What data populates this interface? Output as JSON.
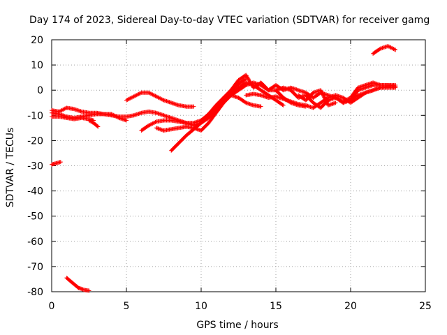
{
  "chart_data": {
    "type": "scatter",
    "title": "Day 174 of 2023, Sidereal Day-to-day VTEC variation (SDTVAR) for receiver gamg",
    "xlabel": "GPS time / hours",
    "ylabel": "SDTVAR / TECUs",
    "xlim": [
      0,
      25
    ],
    "ylim": [
      -80,
      20
    ],
    "xticks": [
      0,
      5,
      10,
      15,
      20,
      25
    ],
    "yticks": [
      -80,
      -70,
      -60,
      -50,
      -40,
      -30,
      -20,
      -10,
      0,
      10,
      20
    ],
    "grid": true,
    "series_color": "#ff0000",
    "marker": "+",
    "segments": [
      [
        [
          0.0,
          -29.5
        ],
        [
          0.3,
          -29.0
        ],
        [
          0.6,
          -28.5
        ]
      ],
      [
        [
          1.0,
          -74.5
        ],
        [
          1.4,
          -76.5
        ],
        [
          1.8,
          -78.5
        ],
        [
          2.2,
          -79.3
        ],
        [
          2.5,
          -79.6
        ]
      ],
      [
        [
          0.0,
          -9.0
        ],
        [
          0.5,
          -9.5
        ],
        [
          1.0,
          -10.5
        ],
        [
          1.5,
          -11.0
        ],
        [
          2.0,
          -10.5
        ],
        [
          2.5,
          -10.0
        ],
        [
          3.0,
          -9.5
        ],
        [
          3.5,
          -9.5
        ],
        [
          4.0,
          -10.0
        ],
        [
          4.5,
          -10.5
        ],
        [
          5.0,
          -10.5
        ],
        [
          5.5,
          -10.0
        ],
        [
          6.0,
          -9.0
        ],
        [
          6.5,
          -8.5
        ],
        [
          7.0,
          -9.0
        ],
        [
          7.5,
          -10.0
        ],
        [
          8.0,
          -11.0
        ],
        [
          8.5,
          -12.0
        ],
        [
          9.0,
          -13.0
        ],
        [
          9.5,
          -13.0
        ],
        [
          10.0,
          -12.0
        ],
        [
          10.5,
          -9.5
        ],
        [
          11.0,
          -6.0
        ],
        [
          11.5,
          -3.0
        ],
        [
          12.0,
          0.0
        ],
        [
          12.5,
          2.5
        ],
        [
          13.0,
          4.5
        ]
      ],
      [
        [
          0.0,
          -8.0
        ],
        [
          0.5,
          -8.5
        ],
        [
          1.0,
          -7.0
        ],
        [
          1.5,
          -7.5
        ],
        [
          2.0,
          -8.5
        ],
        [
          2.5,
          -9.0
        ],
        [
          3.0,
          -9.0
        ],
        [
          3.5,
          -9.5
        ],
        [
          4.0,
          -9.5
        ],
        [
          4.5,
          -11.0
        ],
        [
          5.0,
          -12.0
        ]
      ],
      [
        [
          0.0,
          -10.5
        ],
        [
          0.5,
          -10.5
        ],
        [
          1.0,
          -11.0
        ],
        [
          1.5,
          -11.5
        ],
        [
          2.0,
          -11.0
        ],
        [
          2.5,
          -11.5
        ],
        [
          2.8,
          -12.0
        ]
      ],
      [
        [
          2.5,
          -12.0
        ],
        [
          2.8,
          -13.0
        ],
        [
          3.1,
          -14.5
        ]
      ],
      [
        [
          5.0,
          -4.0
        ],
        [
          5.5,
          -2.5
        ],
        [
          6.0,
          -1.0
        ],
        [
          6.5,
          -1.0
        ],
        [
          7.0,
          -2.5
        ],
        [
          7.5,
          -4.0
        ],
        [
          8.0,
          -5.0
        ],
        [
          8.5,
          -6.0
        ],
        [
          9.0,
          -6.5
        ],
        [
          9.5,
          -6.5
        ]
      ],
      [
        [
          6.0,
          -16.0
        ],
        [
          6.5,
          -14.0
        ],
        [
          7.0,
          -12.5
        ],
        [
          7.5,
          -12.0
        ],
        [
          8.0,
          -12.0
        ],
        [
          8.5,
          -12.5
        ],
        [
          9.0,
          -13.0
        ],
        [
          9.5,
          -14.0
        ],
        [
          10.0,
          -13.0
        ],
        [
          10.5,
          -11.0
        ],
        [
          11.0,
          -8.0
        ],
        [
          11.5,
          -4.0
        ],
        [
          12.0,
          -1.0
        ],
        [
          12.5,
          1.0
        ],
        [
          13.0,
          3.0
        ],
        [
          13.5,
          2.0
        ],
        [
          14.0,
          0.0
        ],
        [
          14.5,
          -2.0
        ],
        [
          15.0,
          -4.0
        ],
        [
          15.5,
          -6.0
        ]
      ],
      [
        [
          7.0,
          -15.0
        ],
        [
          7.5,
          -16.0
        ],
        [
          8.0,
          -15.5
        ],
        [
          8.5,
          -15.0
        ],
        [
          9.0,
          -14.5
        ],
        [
          9.5,
          -15.0
        ],
        [
          10.0,
          -16.0
        ],
        [
          10.5,
          -13.0
        ],
        [
          11.0,
          -9.0
        ],
        [
          11.5,
          -5.0
        ],
        [
          12.0,
          -2.0
        ],
        [
          12.5,
          0.0
        ],
        [
          13.0,
          2.0
        ],
        [
          13.5,
          3.0
        ],
        [
          14.0,
          2.0
        ],
        [
          14.5,
          0.0
        ],
        [
          15.0,
          0.0
        ],
        [
          15.5,
          -3.0
        ],
        [
          16.0,
          -5.0
        ],
        [
          16.5,
          -6.0
        ],
        [
          17.0,
          -6.5
        ]
      ],
      [
        [
          8.0,
          -24.0
        ],
        [
          8.5,
          -21.0
        ],
        [
          9.0,
          -18.0
        ],
        [
          9.5,
          -15.5
        ],
        [
          10.0,
          -13.0
        ],
        [
          10.5,
          -10.0
        ],
        [
          11.0,
          -7.0
        ],
        [
          11.5,
          -4.0
        ],
        [
          12.0,
          -2.0
        ],
        [
          12.5,
          -3.0
        ],
        [
          13.0,
          -5.0
        ],
        [
          13.5,
          -6.0
        ],
        [
          14.0,
          -6.5
        ]
      ],
      [
        [
          12.0,
          0.0
        ],
        [
          12.5,
          4.0
        ],
        [
          13.0,
          6.0
        ],
        [
          13.5,
          1.0
        ],
        [
          14.0,
          3.0
        ],
        [
          14.5,
          0.0
        ],
        [
          15.0,
          2.0
        ],
        [
          15.5,
          0.0
        ],
        [
          16.0,
          1.0
        ],
        [
          16.5,
          0.0
        ],
        [
          17.0,
          -1.0
        ],
        [
          17.5,
          -3.0
        ],
        [
          18.0,
          -1.0
        ],
        [
          18.5,
          -2.0
        ],
        [
          19.0,
          -3.0
        ],
        [
          19.5,
          -4.5
        ],
        [
          20.0,
          -3.0
        ],
        [
          20.5,
          1.0
        ],
        [
          21.0,
          2.0
        ],
        [
          21.5,
          3.0
        ],
        [
          22.0,
          2.0
        ],
        [
          22.5,
          2.0
        ],
        [
          23.0,
          1.5
        ]
      ],
      [
        [
          13.0,
          -2.0
        ],
        [
          13.5,
          -1.5
        ],
        [
          14.0,
          -2.0
        ],
        [
          14.5,
          -3.0
        ],
        [
          15.0,
          -2.5
        ],
        [
          15.5,
          -3.5
        ],
        [
          16.0,
          -4.5
        ],
        [
          16.5,
          -5.5
        ],
        [
          17.0,
          -6.0
        ],
        [
          17.5,
          -7.0
        ],
        [
          18.0,
          -5.0
        ],
        [
          18.5,
          -3.0
        ],
        [
          19.0,
          -2.0
        ],
        [
          19.5,
          -3.0
        ],
        [
          20.0,
          -5.0
        ],
        [
          20.5,
          -3.0
        ],
        [
          21.0,
          -1.0
        ],
        [
          21.5,
          0.0
        ],
        [
          22.0,
          1.0
        ],
        [
          22.5,
          1.0
        ],
        [
          23.0,
          1.0
        ]
      ],
      [
        [
          15.0,
          0.0
        ],
        [
          15.5,
          1.0
        ],
        [
          16.0,
          0.0
        ],
        [
          16.5,
          -3.0
        ],
        [
          17.0,
          -2.0
        ],
        [
          17.5,
          -5.0
        ],
        [
          18.0,
          -7.0
        ],
        [
          18.5,
          -4.0
        ],
        [
          19.0,
          -3.0
        ],
        [
          19.5,
          -5.0
        ],
        [
          20.0,
          -4.0
        ],
        [
          20.5,
          0.0
        ],
        [
          21.0,
          1.0
        ],
        [
          21.5,
          2.0
        ],
        [
          22.0,
          2.0
        ],
        [
          22.5,
          2.0
        ],
        [
          23.0,
          2.0
        ]
      ],
      [
        [
          16.5,
          -2.0
        ],
        [
          17.0,
          -4.0
        ],
        [
          17.5,
          -1.0
        ],
        [
          18.0,
          0.0
        ],
        [
          18.5,
          -6.0
        ],
        [
          19.0,
          -5.0
        ]
      ],
      [
        [
          19.5,
          -5.0
        ],
        [
          20.0,
          -3.5
        ],
        [
          20.5,
          -2.0
        ],
        [
          21.0,
          -1.0
        ],
        [
          21.5,
          0.0
        ],
        [
          22.0,
          1.0
        ],
        [
          22.5,
          1.5
        ],
        [
          23.0,
          1.5
        ]
      ],
      [
        [
          21.5,
          14.5
        ],
        [
          22.0,
          16.5
        ],
        [
          22.5,
          17.5
        ],
        [
          23.0,
          16.0
        ]
      ]
    ]
  }
}
